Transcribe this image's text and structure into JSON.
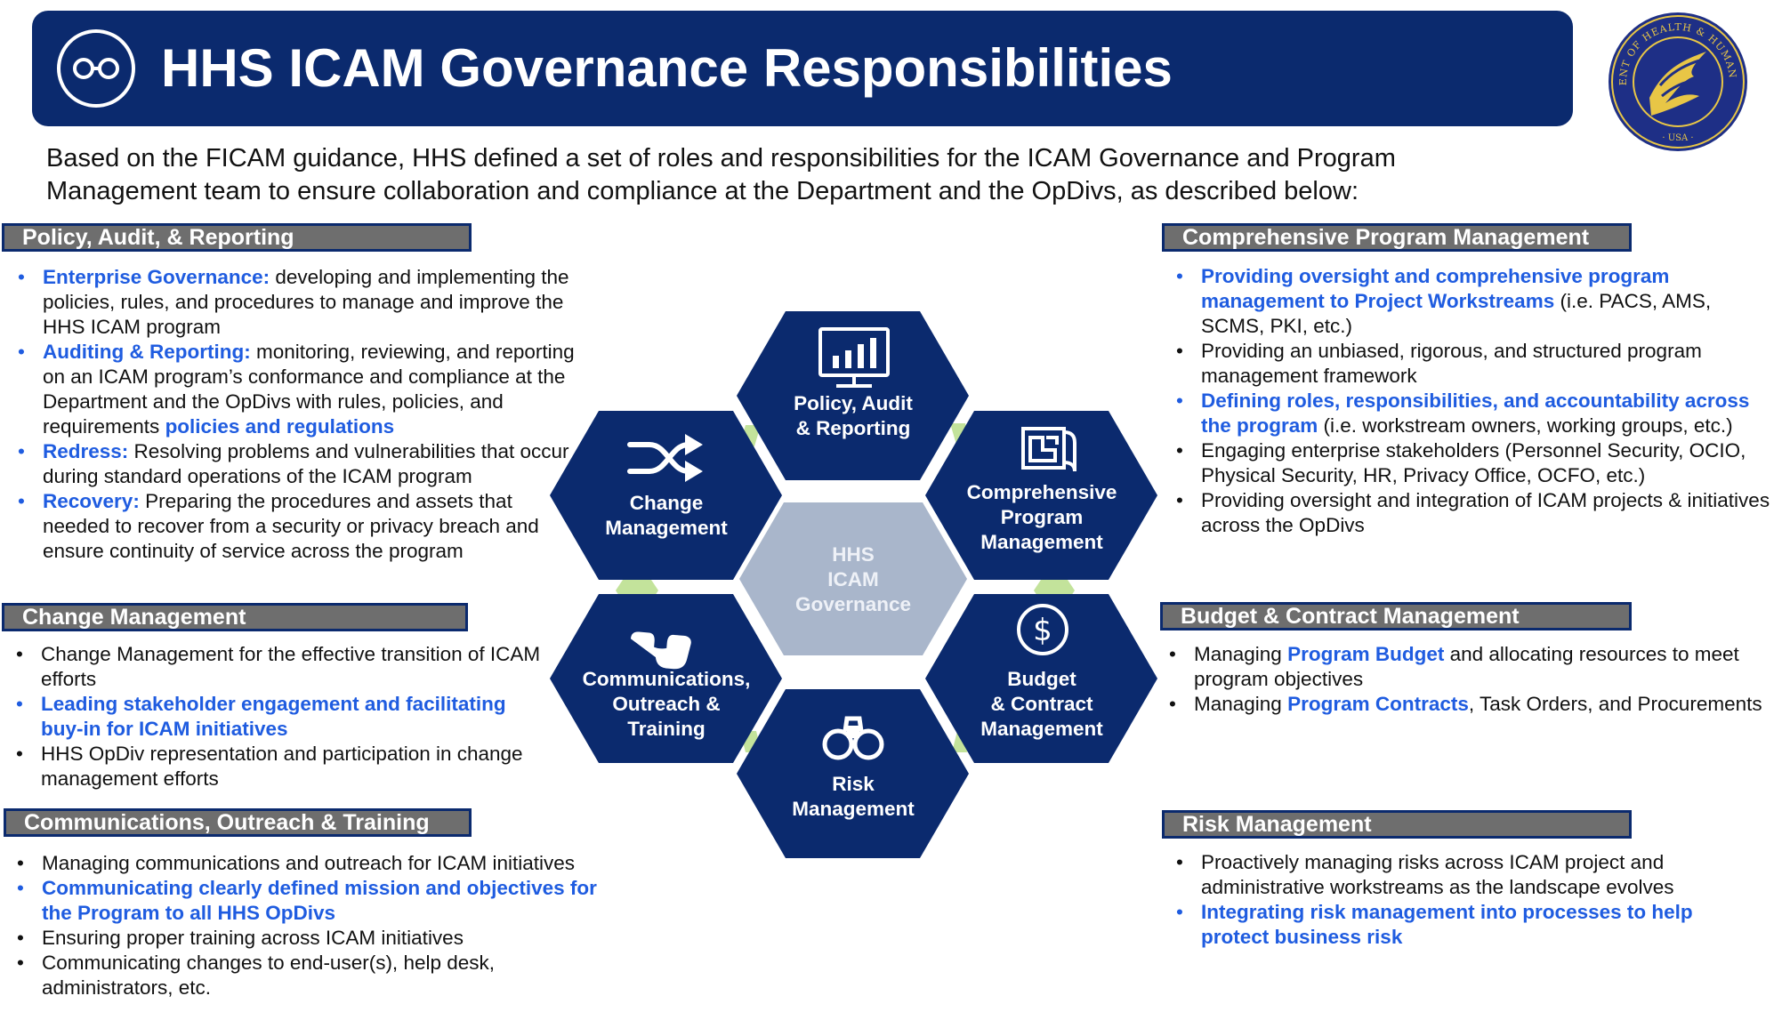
{
  "banner": {
    "title": "HHS ICAM Governance Responsibilities",
    "icon": "glasses-icon"
  },
  "seal": {
    "text_top": "DEPARTMENT OF HEALTH & HUMAN SERVICES",
    "text_bottom": "USA",
    "icon": "hhs-eagle-seal"
  },
  "intro": "Based on the FICAM guidance, HHS defined a set of roles and responsibilities for the ICAM Governance and Program Management team to ensure collaboration and compliance at the Department and the OpDivs, as described below:",
  "colors": {
    "navy": "#0b2a6e",
    "accent_blue": "#1f5ce0",
    "header_gray": "#6e6e6e",
    "center_hex": "#a9b6cb",
    "connector_green": "#c3e39b"
  },
  "sections": {
    "policy": {
      "header": "Policy, Audit, & Reporting",
      "b1_bold": "Enterprise Governance:",
      "b1_text": " developing and implementing the policies, rules, and procedures to manage and improve the HHS ICAM program",
      "b2_bold": "Auditing & Reporting:",
      "b2_text": " monitoring, reviewing, and reporting on an ICAM program’s conformance and compliance at the Department and the OpDivs with rules, policies, and requirements ",
      "b2_tail": "policies and regulations",
      "b3_bold": "Redress:",
      "b3_text": " Resolving problems and vulnerabilities that occur during standard operations of the ICAM program",
      "b4_bold": "Recovery:",
      "b4_text": " Preparing the procedures and assets that needed to recover from a security or privacy breach and ensure continuity of service across the program"
    },
    "change": {
      "header": "Change Management",
      "b1": "Change Management for the effective transition of ICAM efforts",
      "b2": "Leading stakeholder engagement and facilitating buy-in for ICAM initiatives",
      "b3": "HHS OpDiv representation and participation in change management efforts"
    },
    "comms": {
      "header": "Communications, Outreach & Training",
      "b1": "Managing communications and outreach for ICAM initiatives",
      "b2": "Communicating clearly defined mission and objectives for the Program to all HHS OpDivs",
      "b3": "Ensuring proper training across ICAM initiatives",
      "b4": "Communicating changes to end-user(s), help desk, administrators, etc."
    },
    "program": {
      "header": "Comprehensive Program Management",
      "b1_bold": "Providing oversight and comprehensive program management to Project Workstreams",
      "b1_text": " (i.e. PACS, AMS, SCMS, PKI, etc.)",
      "b2": "Providing an unbiased, rigorous, and structured program management framework",
      "b3_bold": "Defining roles, responsibilities, and accountability across the program",
      "b3_text": " (i.e. workstream owners, working groups, etc.)",
      "b4": "Engaging enterprise stakeholders (Personnel Security, OCIO, Physical Security, HR, Privacy Office, OCFO, etc.)",
      "b5": "Providing oversight and integration of ICAM projects & initiatives across the OpDivs"
    },
    "budget": {
      "header": "Budget & Contract Management",
      "b1_pre": "Managing ",
      "b1_bold": "Program Budget",
      "b1_text": " and allocating resources to meet program objectives",
      "b2_pre": "Managing ",
      "b2_bold": "Program Contracts",
      "b2_text": ", Task Orders, and Procurements"
    },
    "risk": {
      "header": "Risk Management",
      "b1": "Proactively managing risks across ICAM project and administrative workstreams as the landscape evolves",
      "b2": "Integrating risk management into processes to help protect business risk"
    }
  },
  "hexagons": {
    "center": {
      "line1": "HHS",
      "line2": "ICAM",
      "line3": "Governance"
    },
    "policy": {
      "line1": "Policy, Audit",
      "line2": "& Reporting",
      "icon": "monitor-chart-icon"
    },
    "change": {
      "line1": "Change",
      "line2": "Management",
      "icon": "shuffle-icon"
    },
    "program": {
      "line1": "Comprehensive",
      "line2": "Program",
      "line3": "Management",
      "icon": "blueprint-icon"
    },
    "budget": {
      "line1": "Budget",
      "line2": "& Contract",
      "line3": "Management",
      "icon": "dollar-icon"
    },
    "comms": {
      "line1": "Communications,",
      "line2": "Outreach &",
      "line3": "Training",
      "icon": "phone-icon"
    },
    "risk": {
      "line1": "Risk",
      "line2": "Management",
      "icon": "binoculars-icon"
    }
  }
}
